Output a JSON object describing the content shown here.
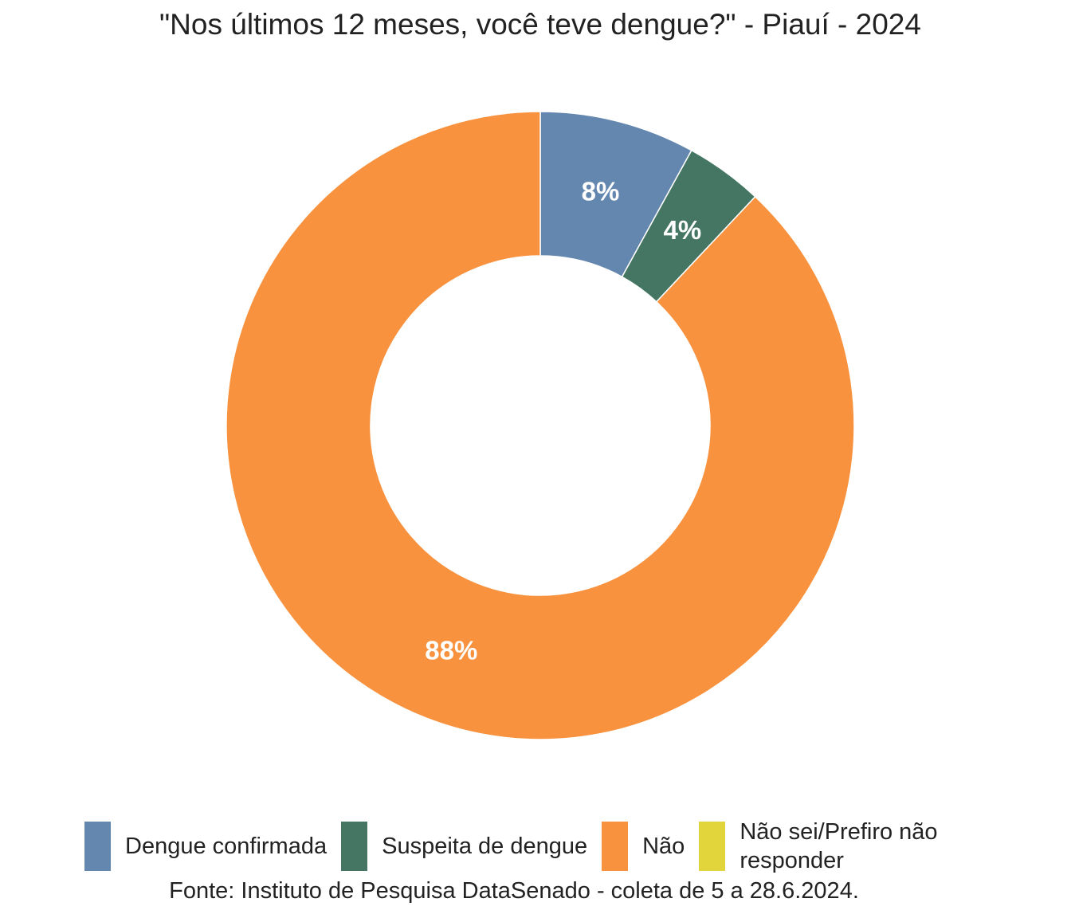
{
  "chart_data": {
    "type": "pie",
    "title": "\"Nos últimos 12 meses, você teve dengue?\" - Piauí - 2024",
    "source": "Fonte: Instituto de Pesquisa DataSenado - coleta de 5 a 28.6.2024.",
    "categories": [
      "Dengue confirmada",
      "Suspeita de dengue",
      "Não",
      "Não sei/Prefiro não responder"
    ],
    "values": [
      8,
      4,
      88,
      0
    ],
    "labels": [
      "8%",
      "4%",
      "88%",
      ""
    ],
    "colors": [
      "#6487B0",
      "#447663",
      "#F8923E",
      "#E2D43B"
    ],
    "donut": true,
    "legend_position": "bottom"
  }
}
